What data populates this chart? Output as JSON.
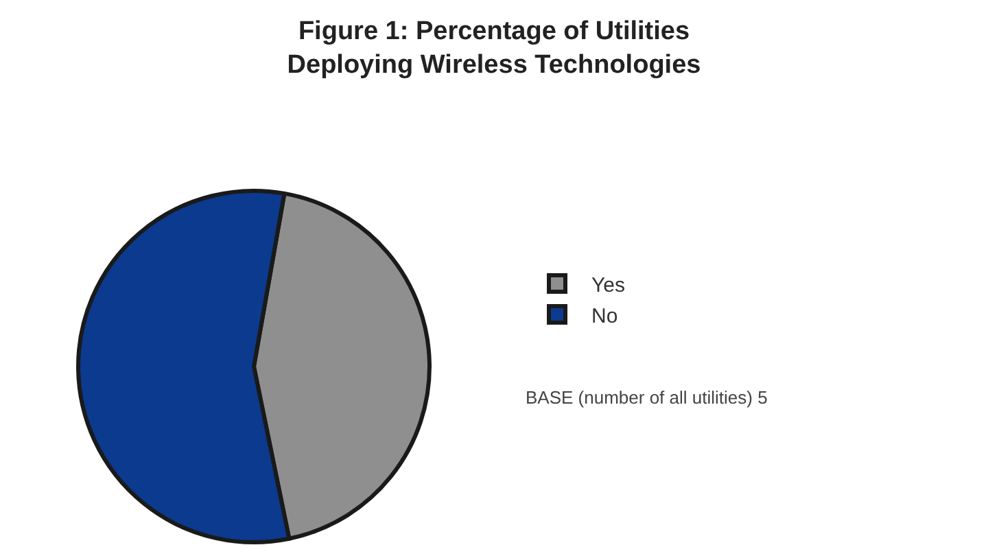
{
  "chart_data": {
    "type": "pie",
    "title": "Figure 1: Percentage of Utilities\nDeploying Wireless Technologies",
    "categories": [
      "Yes",
      "No"
    ],
    "values": [
      44,
      56
    ],
    "colors": [
      "#8f8f8f",
      "#0b3a8e"
    ],
    "legend": "right",
    "annotations": [
      "BASE (number of all utilities) 5"
    ]
  }
}
